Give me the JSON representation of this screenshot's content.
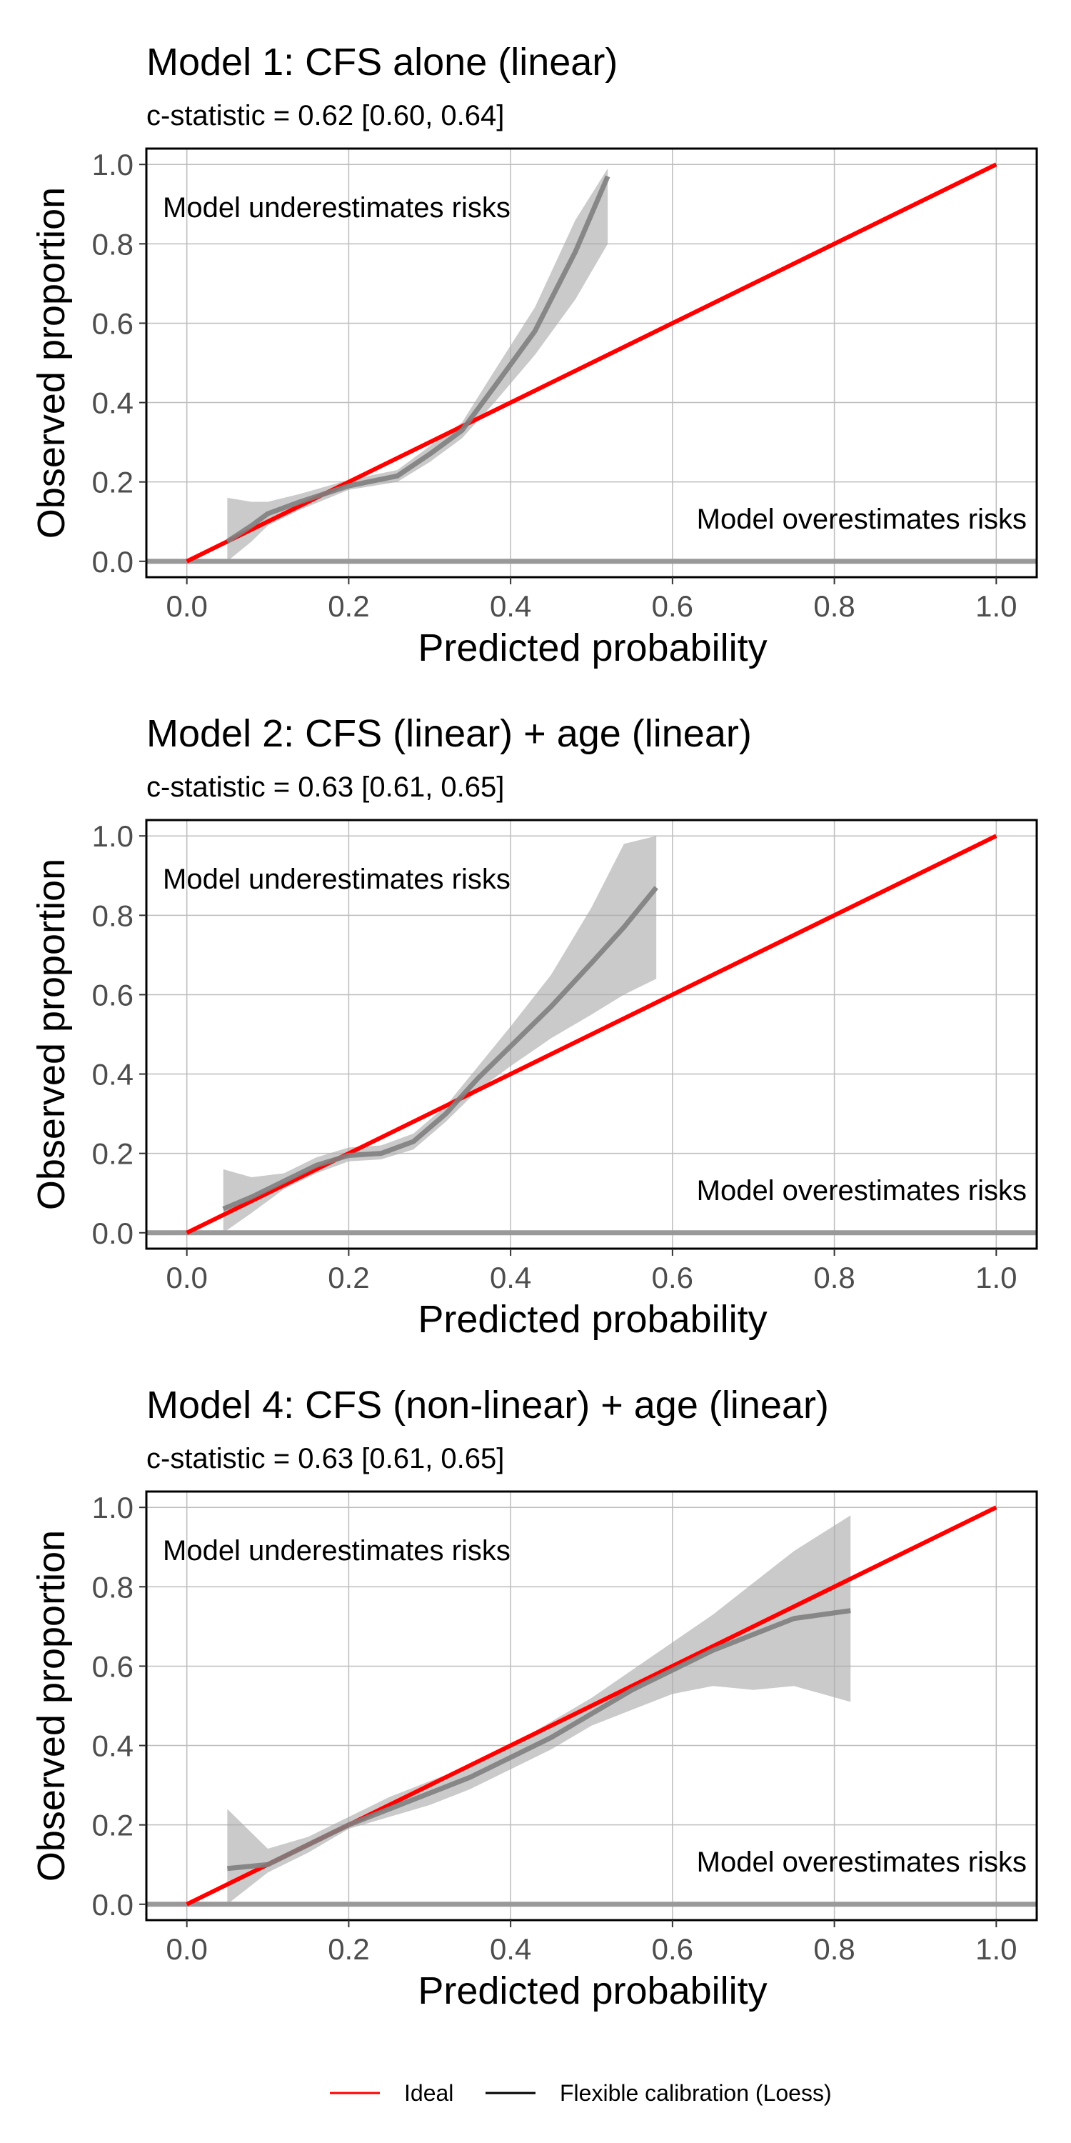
{
  "chart_data": [
    {
      "type": "line",
      "title": "Model 1: CFS alone (linear)",
      "subtitle": "c-statistic = 0.62 [0.60, 0.64]",
      "xlabel": "Predicted probability",
      "ylabel": "Observed proportion",
      "xlim": [
        -0.05,
        1.05
      ],
      "ylim": [
        -0.04,
        1.04
      ],
      "x_ticks": [
        "0.0",
        "0.2",
        "0.4",
        "0.6",
        "0.8",
        "1.0"
      ],
      "y_ticks": [
        "0.0",
        "0.2",
        "0.4",
        "0.6",
        "0.8",
        "1.0"
      ],
      "grid": true,
      "annotations": {
        "upper_left": "Model underestimates risks",
        "lower_right": "Model overestimates risks"
      },
      "series": [
        {
          "name": "Ideal",
          "color": "#ff0000",
          "x": [
            0.0,
            1.0
          ],
          "y": [
            0.0,
            1.0
          ]
        },
        {
          "name": "Flexible calibration (Loess)",
          "color": "#7f7f7f",
          "x": [
            0.05,
            0.08,
            0.1,
            0.14,
            0.2,
            0.26,
            0.3,
            0.34,
            0.38,
            0.43,
            0.48,
            0.52
          ],
          "y": [
            0.05,
            0.09,
            0.12,
            0.15,
            0.19,
            0.215,
            0.27,
            0.33,
            0.44,
            0.58,
            0.78,
            0.97
          ],
          "lower": [
            0.0,
            0.05,
            0.09,
            0.13,
            0.18,
            0.2,
            0.25,
            0.31,
            0.4,
            0.52,
            0.66,
            0.8
          ],
          "upper": [
            0.16,
            0.15,
            0.15,
            0.17,
            0.205,
            0.23,
            0.29,
            0.35,
            0.48,
            0.64,
            0.86,
            0.99
          ]
        }
      ]
    },
    {
      "type": "line",
      "title": "Model 2: CFS (linear) + age (linear)",
      "subtitle": "c-statistic = 0.63 [0.61, 0.65]",
      "xlabel": "Predicted probability",
      "ylabel": "Observed proportion",
      "xlim": [
        -0.05,
        1.05
      ],
      "ylim": [
        -0.04,
        1.04
      ],
      "x_ticks": [
        "0.0",
        "0.2",
        "0.4",
        "0.6",
        "0.8",
        "1.0"
      ],
      "y_ticks": [
        "0.0",
        "0.2",
        "0.4",
        "0.6",
        "0.8",
        "1.0"
      ],
      "grid": true,
      "annotations": {
        "upper_left": "Model underestimates risks",
        "lower_right": "Model overestimates risks"
      },
      "series": [
        {
          "name": "Ideal",
          "color": "#ff0000",
          "x": [
            0.0,
            1.0
          ],
          "y": [
            0.0,
            1.0
          ]
        },
        {
          "name": "Flexible calibration (Loess)",
          "color": "#7f7f7f",
          "x": [
            0.045,
            0.08,
            0.12,
            0.16,
            0.2,
            0.24,
            0.28,
            0.32,
            0.36,
            0.4,
            0.45,
            0.5,
            0.54,
            0.58
          ],
          "y": [
            0.06,
            0.09,
            0.13,
            0.17,
            0.195,
            0.2,
            0.23,
            0.3,
            0.39,
            0.47,
            0.57,
            0.68,
            0.77,
            0.87
          ],
          "lower": [
            0.0,
            0.05,
            0.11,
            0.15,
            0.18,
            0.185,
            0.21,
            0.28,
            0.36,
            0.42,
            0.49,
            0.55,
            0.6,
            0.64
          ],
          "upper": [
            0.16,
            0.14,
            0.15,
            0.19,
            0.215,
            0.22,
            0.25,
            0.32,
            0.42,
            0.52,
            0.65,
            0.82,
            0.98,
            1.0
          ]
        }
      ]
    },
    {
      "type": "line",
      "title": "Model 4: CFS (non-linear) + age (linear)",
      "subtitle": "c-statistic = 0.63 [0.61, 0.65]",
      "xlabel": "Predicted probability",
      "ylabel": "Observed proportion",
      "xlim": [
        -0.05,
        1.05
      ],
      "ylim": [
        -0.04,
        1.04
      ],
      "x_ticks": [
        "0.0",
        "0.2",
        "0.4",
        "0.6",
        "0.8",
        "1.0"
      ],
      "y_ticks": [
        "0.0",
        "0.2",
        "0.4",
        "0.6",
        "0.8",
        "1.0"
      ],
      "grid": true,
      "annotations": {
        "upper_left": "Model underestimates risks",
        "lower_right": "Model overestimates risks"
      },
      "series": [
        {
          "name": "Ideal",
          "color": "#ff0000",
          "x": [
            0.0,
            1.0
          ],
          "y": [
            0.0,
            1.0
          ]
        },
        {
          "name": "Flexible calibration (Loess)",
          "color": "#7f7f7f",
          "x": [
            0.05,
            0.1,
            0.15,
            0.2,
            0.25,
            0.3,
            0.35,
            0.4,
            0.45,
            0.5,
            0.55,
            0.6,
            0.65,
            0.7,
            0.75,
            0.82
          ],
          "y": [
            0.09,
            0.1,
            0.15,
            0.2,
            0.24,
            0.28,
            0.32,
            0.37,
            0.42,
            0.48,
            0.54,
            0.59,
            0.64,
            0.68,
            0.72,
            0.74
          ],
          "lower": [
            0.0,
            0.08,
            0.13,
            0.19,
            0.22,
            0.25,
            0.29,
            0.34,
            0.39,
            0.45,
            0.49,
            0.53,
            0.55,
            0.54,
            0.55,
            0.51
          ],
          "upper": [
            0.24,
            0.14,
            0.17,
            0.22,
            0.27,
            0.31,
            0.35,
            0.4,
            0.46,
            0.52,
            0.59,
            0.66,
            0.73,
            0.81,
            0.89,
            0.98
          ]
        }
      ]
    }
  ],
  "legend": {
    "items": [
      {
        "label": "Ideal",
        "color": "#ff0000"
      },
      {
        "label": "Flexible calibration (Loess)",
        "color": "#000000"
      }
    ]
  }
}
